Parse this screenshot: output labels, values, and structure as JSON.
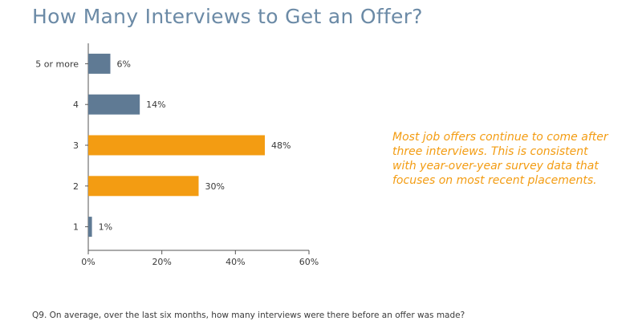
{
  "colors": {
    "title": "#6b8aa6",
    "highlight": "#f39c12",
    "base": "#5f7a94",
    "axis": "#555555",
    "callout": "#f39c12"
  },
  "callout": {
    "line1": "Most job offers continue to come after",
    "line2": "three interviews. This is consistent",
    "line3": "with year-over-year survey data that",
    "line4": "focuses on most recent placements."
  },
  "footnote": "Q9. On average, over the last six months, how many interviews were there before an offer was made?",
  "chart_data": {
    "type": "bar",
    "orientation": "horizontal",
    "title": "How Many Interviews to Get an Offer?",
    "categories": [
      "5 or more",
      "4",
      "3",
      "2",
      "1"
    ],
    "values": [
      6,
      14,
      48,
      30,
      1
    ],
    "value_labels": [
      "6%",
      "14%",
      "48%",
      "30%",
      "1%"
    ],
    "highlighted": [
      false,
      false,
      true,
      true,
      false
    ],
    "xlim": [
      0,
      60
    ],
    "xticks": [
      0,
      20,
      40,
      60
    ],
    "xtick_labels": [
      "0%",
      "20%",
      "40%",
      "60%"
    ],
    "grid": false,
    "legend": "none"
  }
}
